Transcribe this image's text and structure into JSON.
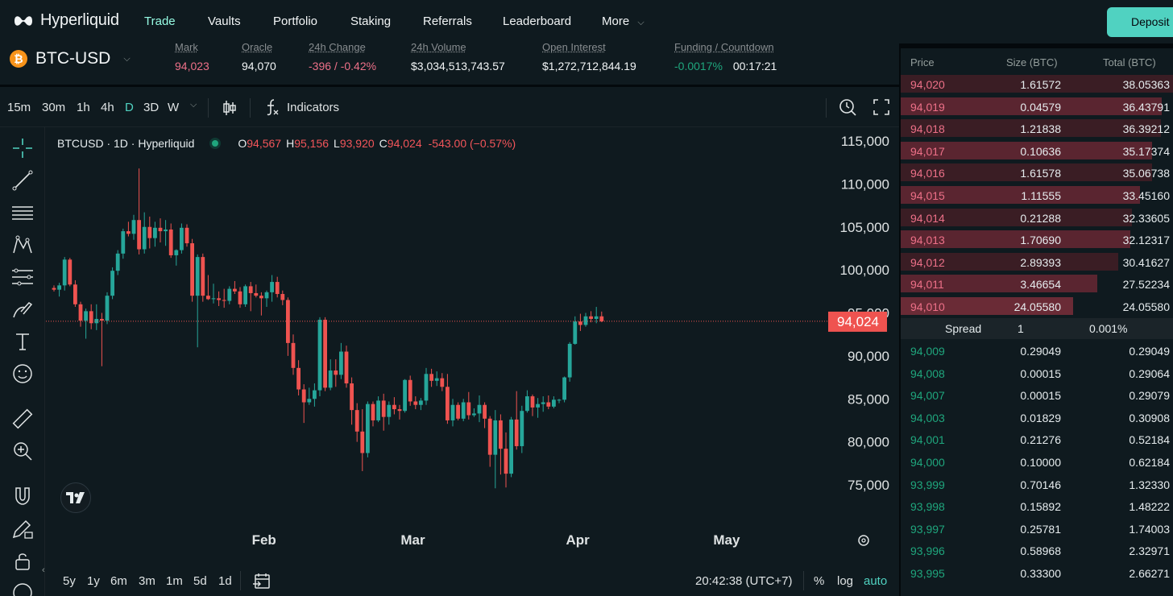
{
  "brand": "Hyperliquid",
  "nav": [
    {
      "label": "Trade",
      "active": true
    },
    {
      "label": "Vaults"
    },
    {
      "label": "Portfolio"
    },
    {
      "label": "Staking"
    },
    {
      "label": "Referrals"
    },
    {
      "label": "Leaderboard"
    },
    {
      "label": "More"
    }
  ],
  "deposit_label": "Deposit",
  "ticker": {
    "symbol": "BTC-USD",
    "coin_glyph": "₿",
    "mark_label": "Mark",
    "mark": "94,023",
    "oracle_label": "Oracle",
    "oracle": "94,070",
    "change_label": "24h Change",
    "change": "-396 / -0.42%",
    "volume_label": "24h Volume",
    "volume": "$3,034,513,743.57",
    "oi_label": "Open Interest",
    "oi": "$1,272,712,844.19",
    "funding_label": "Funding / Countdown",
    "funding": "-0.0017%",
    "countdown": "00:17:21"
  },
  "toolbar": {
    "timeframes": [
      "15m",
      "30m",
      "1h",
      "4h",
      "D",
      "3D",
      "W"
    ],
    "active_timeframe": "D",
    "indicators_label": "Indicators"
  },
  "legend": {
    "symbol": "BTCUSD · 1D · Hyperliquid",
    "o": "94,567",
    "h": "95,156",
    "l": "93,920",
    "c": "94,024",
    "change": "-543.00 (−0.57%)"
  },
  "bottom_bar": {
    "ranges": [
      "5y",
      "1y",
      "6m",
      "3m",
      "1m",
      "5d",
      "1d"
    ],
    "clock": "20:42:38 (UTC+7)",
    "pct": "%",
    "log": "log",
    "auto": "auto"
  },
  "chart_data": {
    "type": "candlestick",
    "title": "BTCUSD · 1D · Hyperliquid",
    "ylim": [
      70000,
      118000
    ],
    "yticks": [
      75000,
      80000,
      85000,
      90000,
      95000,
      100000,
      105000,
      110000,
      115000
    ],
    "ytick_labels": [
      "75,000",
      "80,000",
      "85,000",
      "90,000",
      "95,000",
      "100,000",
      "105,000",
      "110,000",
      "115,000"
    ],
    "xtick_labels": [
      "Feb",
      "Mar",
      "Apr",
      "May"
    ],
    "xtick_index": [
      39.5,
      67.5,
      98.5,
      126.5
    ],
    "last_price": 94024,
    "last_price_label": "94,024",
    "candles": [
      [
        97900,
        98200,
        97500,
        97700
      ],
      [
        97700,
        98500,
        96900,
        98200
      ],
      [
        98200,
        101500,
        97600,
        101200
      ],
      [
        101200,
        101400,
        98100,
        98300
      ],
      [
        98300,
        98800,
        95700,
        96000
      ],
      [
        96000,
        96300,
        93400,
        94100
      ],
      [
        94100,
        95500,
        92000,
        95200
      ],
      [
        95200,
        96000,
        93100,
        93800
      ],
      [
        93800,
        96000,
        93000,
        94300
      ],
      [
        94300,
        95000,
        88800,
        94100
      ],
      [
        94100,
        97400,
        93700,
        97000
      ],
      [
        97000,
        100300,
        96600,
        99900
      ],
      [
        99900,
        102300,
        99400,
        101900
      ],
      [
        101900,
        104800,
        101300,
        104500
      ],
      [
        104500,
        105600,
        103900,
        104200
      ],
      [
        104200,
        106400,
        103500,
        105800
      ],
      [
        105800,
        111800,
        101800,
        102400
      ],
      [
        102400,
        106700,
        101900,
        105000
      ],
      [
        105000,
        106200,
        102500,
        103700
      ],
      [
        103700,
        105600,
        102700,
        104900
      ],
      [
        104900,
        106000,
        103200,
        104500
      ],
      [
        104500,
        105800,
        102800,
        104700
      ],
      [
        104700,
        105400,
        101400,
        101700
      ],
      [
        101700,
        102400,
        100500,
        102300
      ],
      [
        102300,
        105400,
        101900,
        104900
      ],
      [
        104900,
        105300,
        102700,
        103100
      ],
      [
        103100,
        103600,
        96300,
        97000
      ],
      [
        97000,
        101800,
        91000,
        101500
      ],
      [
        101500,
        101900,
        96300,
        97000
      ],
      [
        97000,
        99400,
        96500,
        96600
      ],
      [
        96600,
        98400,
        96100,
        96700
      ],
      [
        96700,
        97500,
        95800,
        96500
      ],
      [
        96500,
        97800,
        95600,
        96400
      ],
      [
        96400,
        98100,
        96000,
        97800
      ],
      [
        97800,
        98700,
        97200,
        97500
      ],
      [
        97500,
        98000,
        95600,
        96000
      ],
      [
        96000,
        98300,
        95700,
        98100
      ],
      [
        98100,
        98600,
        95200,
        97300
      ],
      [
        97300,
        98300,
        96800,
        97000
      ],
      [
        97000,
        97400,
        94700,
        96700
      ],
      [
        96700,
        97600,
        95700,
        97400
      ],
      [
        97400,
        99400,
        96300,
        98600
      ],
      [
        98600,
        99200,
        96800,
        97200
      ],
      [
        97200,
        97600,
        95900,
        96500
      ],
      [
        96500,
        96800,
        90000,
        91500
      ],
      [
        91500,
        92500,
        87800,
        88600
      ],
      [
        88600,
        89500,
        85400,
        86100
      ],
      [
        86100,
        86700,
        82200,
        84600
      ],
      [
        84600,
        86300,
        84300,
        85000
      ],
      [
        85000,
        86800,
        84100,
        86000
      ],
      [
        86000,
        94500,
        85300,
        94200
      ],
      [
        94200,
        94500,
        85900,
        86300
      ],
      [
        86300,
        89600,
        86000,
        88300
      ],
      [
        88300,
        89600,
        86400,
        87800
      ],
      [
        87800,
        91500,
        87300,
        90500
      ],
      [
        90500,
        91200,
        86300,
        86800
      ],
      [
        86800,
        87500,
        82000,
        83700
      ],
      [
        83700,
        84500,
        80000,
        81200
      ],
      [
        81200,
        83800,
        76600,
        78700
      ],
      [
        78700,
        84700,
        78200,
        84400
      ],
      [
        84400,
        84700,
        81800,
        82500
      ],
      [
        82500,
        85300,
        82300,
        84800
      ],
      [
        84800,
        85600,
        81300,
        82900
      ],
      [
        82900,
        84700,
        82000,
        84300
      ],
      [
        84300,
        85200,
        83200,
        83800
      ],
      [
        83800,
        84300,
        82600,
        83600
      ],
      [
        83600,
        87300,
        83400,
        87200
      ],
      [
        87200,
        87700,
        84200,
        84700
      ],
      [
        84700,
        85300,
        83800,
        84300
      ],
      [
        84300,
        85100,
        83700,
        84800
      ],
      [
        84800,
        88600,
        84300,
        87900
      ],
      [
        87900,
        88500,
        86400,
        87100
      ],
      [
        87100,
        88200,
        86500,
        87400
      ],
      [
        87400,
        88000,
        85900,
        86400
      ],
      [
        86400,
        87900,
        82100,
        82500
      ],
      [
        82500,
        85000,
        81800,
        84300
      ],
      [
        84300,
        84600,
        82500,
        82700
      ],
      [
        82700,
        85000,
        82400,
        84600
      ],
      [
        84600,
        85800,
        82600,
        83100
      ],
      [
        83100,
        83900,
        82900,
        83300
      ],
      [
        83300,
        85400,
        82300,
        84300
      ],
      [
        84300,
        84600,
        81600,
        82700
      ],
      [
        82700,
        83000,
        77100,
        78500
      ],
      [
        78500,
        83700,
        74600,
        82500
      ],
      [
        82500,
        83200,
        76200,
        79200
      ],
      [
        79200,
        81100,
        74700,
        76300
      ],
      [
        76300,
        82900,
        75900,
        82600
      ],
      [
        82600,
        85900,
        79100,
        79500
      ],
      [
        79500,
        84200,
        78700,
        83600
      ],
      [
        83600,
        86000,
        83400,
        85300
      ],
      [
        85300,
        85500,
        83000,
        84000
      ],
      [
        84000,
        85100,
        82800,
        84400
      ],
      [
        84400,
        85300,
        83500,
        84600
      ],
      [
        84600,
        85400,
        83800,
        84100
      ],
      [
        84100,
        85300,
        83900,
        84900
      ],
      [
        84900,
        85000,
        84500,
        84900
      ],
      [
        84900,
        87600,
        84600,
        87500
      ],
      [
        87500,
        91600,
        87000,
        91400
      ],
      [
        91400,
        94600,
        91300,
        94000
      ],
      [
        94000,
        94900,
        92900,
        93600
      ],
      [
        93600,
        95000,
        93400,
        94600
      ],
      [
        94600,
        95200,
        93900,
        94300
      ],
      [
        94300,
        95700,
        93800,
        94600
      ],
      [
        94600,
        95156,
        93920,
        94024
      ]
    ]
  },
  "orderbook": {
    "headers": {
      "price": "Price",
      "size": "Size (BTC)",
      "total": "Total (BTC)"
    },
    "asks": [
      {
        "price": "94,020",
        "size": "1.61572",
        "total": "38.05363",
        "depth": 1.0
      },
      {
        "price": "94,019",
        "size": "0.04579",
        "total": "36.43791",
        "depth": 0.958
      },
      {
        "price": "94,018",
        "size": "1.21838",
        "total": "36.39212",
        "depth": 0.956
      },
      {
        "price": "94,017",
        "size": "0.10636",
        "total": "35.17374",
        "depth": 0.924
      },
      {
        "price": "94,016",
        "size": "1.61578",
        "total": "35.06738",
        "depth": 0.922
      },
      {
        "price": "94,015",
        "size": "1.11555",
        "total": "33.45160",
        "depth": 0.879
      },
      {
        "price": "94,014",
        "size": "0.21288",
        "total": "32.33605",
        "depth": 0.85
      },
      {
        "price": "94,013",
        "size": "1.70690",
        "total": "32.12317",
        "depth": 0.844
      },
      {
        "price": "94,012",
        "size": "2.89393",
        "total": "30.41627",
        "depth": 0.799
      },
      {
        "price": "94,011",
        "size": "3.46654",
        "total": "27.52234",
        "depth": 0.723
      },
      {
        "price": "94,010",
        "size": "24.05580",
        "total": "24.05580",
        "depth": 0.632
      }
    ],
    "spread": {
      "label": "Spread",
      "value": "1",
      "pct": "0.001%"
    },
    "bids": [
      {
        "price": "94,009",
        "size": "0.29049",
        "total": "0.29049"
      },
      {
        "price": "94,008",
        "size": "0.00015",
        "total": "0.29064"
      },
      {
        "price": "94,007",
        "size": "0.00015",
        "total": "0.29079"
      },
      {
        "price": "94,003",
        "size": "0.01829",
        "total": "0.30908"
      },
      {
        "price": "94,001",
        "size": "0.21276",
        "total": "0.52184"
      },
      {
        "price": "94,000",
        "size": "0.10000",
        "total": "0.62184"
      },
      {
        "price": "93,999",
        "size": "0.70146",
        "total": "1.32330"
      },
      {
        "price": "93,998",
        "size": "0.15892",
        "total": "1.48222"
      },
      {
        "price": "93,997",
        "size": "0.25781",
        "total": "1.74003"
      },
      {
        "price": "93,996",
        "size": "0.58968",
        "total": "2.32971"
      },
      {
        "price": "93,995",
        "size": "0.33300",
        "total": "2.66271"
      }
    ]
  },
  "colors": {
    "up": "#26a69a",
    "down": "#ef5350",
    "accent": "#50d2c1",
    "ask_text": "#ed7088",
    "bid_text": "#1fa67d",
    "panel": "#0f1a1f"
  }
}
